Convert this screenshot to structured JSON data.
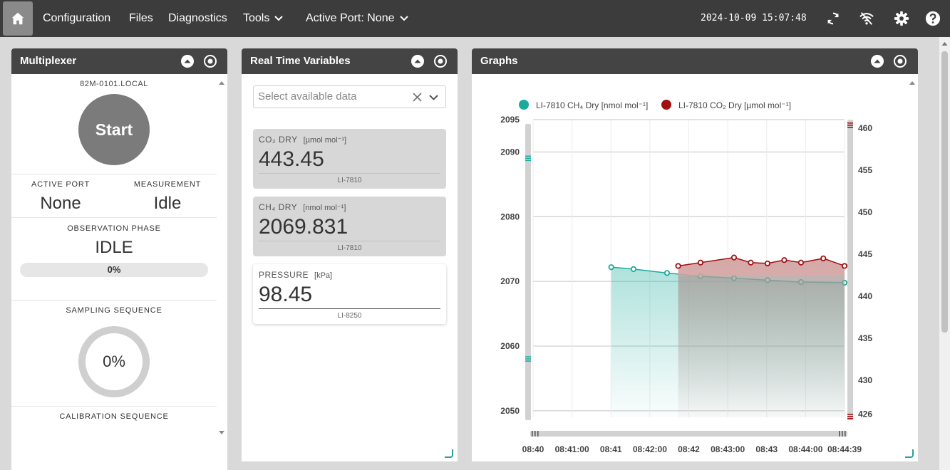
{
  "nav": {
    "items": [
      "Configuration",
      "Files",
      "Diagnostics",
      "Tools",
      "Active Port: None"
    ],
    "datetime": "2024-10-09 15:07:48",
    "icons": [
      "home-icon",
      "sync-icon",
      "wifi-off-icon",
      "gear-icon",
      "help-icon"
    ]
  },
  "multiplexer": {
    "title": "Multiplexer",
    "host": "82M-0101.LOCAL",
    "start_label": "Start",
    "active_port_label": "ACTIVE PORT",
    "active_port_value": "None",
    "measurement_label": "MEASUREMENT",
    "measurement_value": "Idle",
    "phase_label": "OBSERVATION PHASE",
    "phase_value": "IDLE",
    "phase_progress": "0%",
    "sampling_label": "SAMPLING SEQUENCE",
    "sampling_progress": "0%",
    "calibration_label": "CALIBRATION SEQUENCE"
  },
  "realtime": {
    "title": "Real Time Variables",
    "select_placeholder": "Select available data",
    "cards": [
      {
        "name": "CO₂ DRY",
        "unit": "[µmol mol⁻¹]",
        "value": "443.45",
        "device": "LI-7810"
      },
      {
        "name": "CH₄ DRY",
        "unit": "[nmol mol⁻¹]",
        "value": "2069.831",
        "device": "LI-7810"
      },
      {
        "name": "PRESSURE",
        "unit": "[kPa]",
        "value": "98.45",
        "device": "LI-8250"
      }
    ]
  },
  "graphs": {
    "title": "Graphs"
  },
  "chart_data": {
    "type": "line",
    "series": [
      {
        "name": "LI-7810 CH₄ Dry [nmol mol⁻¹]",
        "axis": "left",
        "color": "#1aab9b",
        "x": [
          "08:41:10",
          "08:41:30",
          "08:42:00",
          "08:42:30",
          "08:43:00",
          "08:43:30",
          "08:44:00",
          "08:44:39"
        ],
        "values": [
          2072.2,
          2071.9,
          2071.3,
          2070.8,
          2070.5,
          2070.2,
          2069.9,
          2069.8
        ]
      },
      {
        "name": "LI-7810 CO₂ Dry [µmol mol⁻¹]",
        "axis": "right",
        "color": "#a00f12",
        "x": [
          "08:42:10",
          "08:42:30",
          "08:43:00",
          "08:43:15",
          "08:43:30",
          "08:43:45",
          "08:44:00",
          "08:44:20",
          "08:44:39"
        ],
        "values": [
          443.6,
          444.0,
          444.6,
          444.0,
          443.9,
          444.3,
          444.0,
          444.5,
          443.6
        ]
      }
    ],
    "x_ticks": [
      "08:40",
      "08:41:00",
      "08:41",
      "08:42:00",
      "08:42",
      "08:43:00",
      "08:43",
      "08:44:00",
      "08:44:39"
    ],
    "x_range": [
      "08:40",
      "08:44:39"
    ],
    "y_left_ticks": [
      "2095",
      "2090",
      "2080",
      "2070",
      "2060",
      "2050"
    ],
    "y_left_range": [
      2049,
      2095
    ],
    "y_right_ticks": [
      "460",
      "455",
      "450",
      "445",
      "440",
      "435",
      "430",
      "426"
    ],
    "y_right_range": [
      425.6,
      461
    ],
    "grid": true,
    "legend_position": "top"
  }
}
